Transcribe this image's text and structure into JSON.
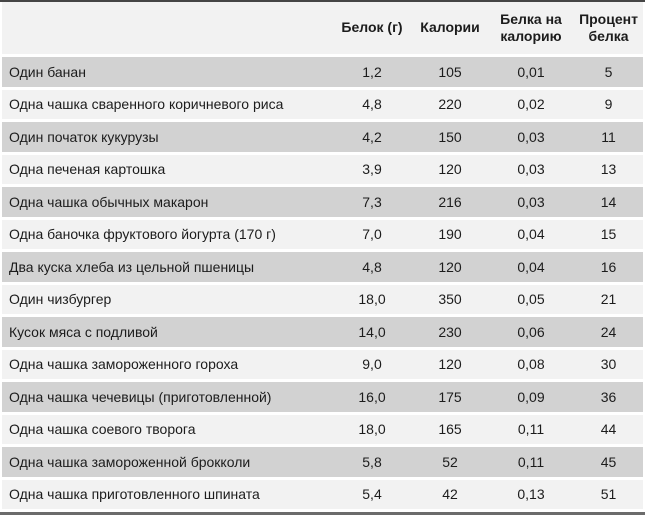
{
  "colors": {
    "row_dark": "#d2d2d2",
    "row_light": "#f2f2f2",
    "header_bg": "#f2f2f2",
    "row_separator": "#ffffff",
    "border_top": "#454545",
    "border_bottom": "#6b6b6b",
    "text": "#1c1c1c"
  },
  "table": {
    "columns": [
      "",
      "Белок (г)",
      "Калории",
      "Белка на калорию",
      "Процент белка"
    ],
    "rows": [
      {
        "name": "Один банан",
        "cells": [
          "1,2",
          "105",
          "0,01",
          "5"
        ]
      },
      {
        "name": "Одна чашка сваренного коричневого риса",
        "cells": [
          "4,8",
          "220",
          "0,02",
          "9"
        ]
      },
      {
        "name": "Один початок кукурузы",
        "cells": [
          "4,2",
          "150",
          "0,03",
          "11"
        ]
      },
      {
        "name": "Одна печеная картошка",
        "cells": [
          "3,9",
          "120",
          "0,03",
          "13"
        ]
      },
      {
        "name": "Одна чашка обычных макарон",
        "cells": [
          "7,3",
          "216",
          "0,03",
          "14"
        ]
      },
      {
        "name": "Одна баночка фруктового йогурта (170 г)",
        "cells": [
          "7,0",
          "190",
          "0,04",
          "15"
        ]
      },
      {
        "name": "Два куска хлеба из цельной пшеницы",
        "cells": [
          "4,8",
          "120",
          "0,04",
          "16"
        ]
      },
      {
        "name": "Один чизбургер",
        "cells": [
          "18,0",
          "350",
          "0,05",
          "21"
        ]
      },
      {
        "name": "Кусок мяса с подливой",
        "cells": [
          "14,0",
          "230",
          "0,06",
          "24"
        ]
      },
      {
        "name": "Одна чашка замороженного гороха",
        "cells": [
          "9,0",
          "120",
          "0,08",
          "30"
        ]
      },
      {
        "name": "Одна чашка чечевицы (приготовленной)",
        "cells": [
          "16,0",
          "175",
          "0,09",
          "36"
        ]
      },
      {
        "name": "Одна чашка соевого творога",
        "cells": [
          "18,0",
          "165",
          "0,11",
          "44"
        ]
      },
      {
        "name": "Одна чашка замороженной брокколи",
        "cells": [
          "5,8",
          "52",
          "0,11",
          "45"
        ]
      },
      {
        "name": "Одна чашка приготовленного шпината",
        "cells": [
          "5,4",
          "42",
          "0,13",
          "51"
        ]
      }
    ]
  }
}
